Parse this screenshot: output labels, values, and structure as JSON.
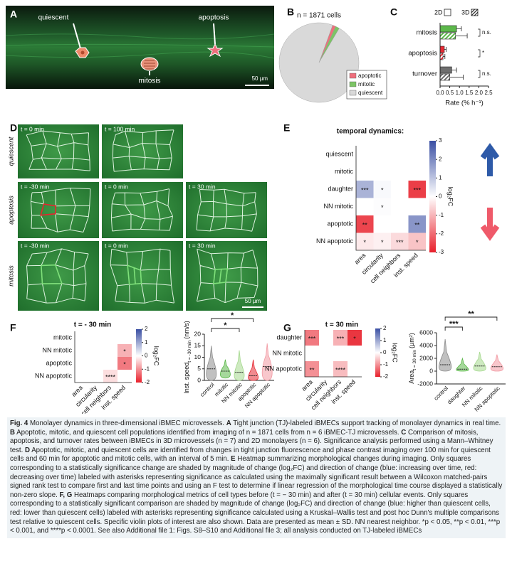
{
  "panel_labels": [
    "A",
    "B",
    "C",
    "D",
    "E",
    "F",
    "G"
  ],
  "image_a": {
    "labels": [
      "quiescent",
      "apoptosis",
      "mitosis"
    ],
    "scale_bar": "50 µm"
  },
  "image_d": {
    "rows": [
      {
        "label": "quiescent",
        "times": [
          "t = 0 min",
          "t = 100 min"
        ]
      },
      {
        "label": "apoptosis",
        "times": [
          "t = -30 min",
          "t = 0 min",
          "t = 30 min"
        ]
      },
      {
        "label": "mitosis",
        "times": [
          "t = -30 min",
          "t = 0 min",
          "t = 30 min"
        ]
      }
    ],
    "scale_bar": "50 µm"
  },
  "chart_data": [
    {
      "type": "pie",
      "title": "n = 1871 cells",
      "series": [
        {
          "name": "apoptotic",
          "color": "#ee6f7c",
          "value": 1.3
        },
        {
          "name": "mitotic",
          "color": "#7cc465",
          "value": 1.6
        },
        {
          "name": "quiescent",
          "color": "#d9d9d9",
          "value": 97.1
        }
      ]
    },
    {
      "type": "bar",
      "orientation": "horizontal",
      "categories": [
        "mitosis",
        "apoptosis",
        "turnover"
      ],
      "category_colors": [
        "#5cb84a",
        "#e62a33",
        "#6e6e6e"
      ],
      "series": [
        {
          "name": "2D",
          "hatch": false,
          "values": [
            0.85,
            0.22,
            0.6
          ],
          "errors": [
            0.25,
            0.1,
            0.25
          ]
        },
        {
          "name": "3D",
          "hatch": true,
          "values": [
            0.8,
            0.15,
            0.5
          ],
          "errors": [
            0.6,
            0.1,
            0.7
          ]
        }
      ],
      "significance": [
        "n.s.",
        "*",
        "n.s."
      ],
      "xlabel": "Rate (% h⁻¹)",
      "xlim": [
        0,
        2.5
      ],
      "xticks": [
        {
          "value": 0,
          "label": "0.0"
        },
        0.5,
        {
          "value": 1,
          "label": "1.0"
        },
        1.5,
        {
          "value": 2,
          "label": "2.0"
        },
        2.5
      ]
    },
    {
      "type": "heatmap",
      "title": "temporal dynamics:",
      "rows": [
        "quiescent",
        "mitotic",
        "daughter",
        "NN mitotic",
        "apoptotic",
        "NN apoptotic"
      ],
      "columns": [
        "area",
        "circularity",
        "cell neighbors",
        "inst. speed"
      ],
      "values": [
        [
          null,
          null,
          null,
          null
        ],
        [
          null,
          null,
          null,
          null
        ],
        [
          1.3,
          0.1,
          null,
          -2.6
        ],
        [
          null,
          0.05,
          null,
          null
        ],
        [
          -2.5,
          null,
          null,
          1.8
        ],
        [
          -0.3,
          -0.2,
          -0.5,
          -0.8
        ]
      ],
      "annotations": [
        [
          null,
          null,
          null,
          null
        ],
        [
          null,
          null,
          null,
          null
        ],
        [
          "***",
          "*",
          null,
          "***"
        ],
        [
          null,
          "*",
          null,
          null
        ],
        [
          "**",
          null,
          null,
          "**"
        ],
        [
          "*",
          "*",
          "***",
          "*"
        ]
      ],
      "clim": [
        -3,
        3
      ],
      "cticks": [
        3,
        2,
        1,
        0,
        -1,
        -2,
        -3
      ],
      "clabel": "log₂FC"
    },
    {
      "type": "heatmap",
      "title": "t = - 30 min",
      "rows": [
        "mitotic",
        "NN mitotic",
        "apoptotic",
        "NN apoptotic"
      ],
      "columns": [
        "area",
        "circularity",
        "cell neighbors",
        "inst. speed"
      ],
      "values": [
        [
          null,
          null,
          null,
          null
        ],
        [
          null,
          null,
          null,
          -0.7
        ],
        [
          null,
          null,
          null,
          -1.2
        ],
        [
          null,
          null,
          -0.3,
          null
        ]
      ],
      "annotations": [
        [
          null,
          null,
          null,
          null
        ],
        [
          null,
          null,
          null,
          "*"
        ],
        [
          null,
          null,
          null,
          "*"
        ],
        [
          null,
          null,
          "****",
          null
        ]
      ],
      "clim": [
        -2,
        2
      ],
      "cticks": [
        2,
        1,
        0,
        -1,
        -2
      ],
      "clabel": "log₂FC"
    },
    {
      "type": "violin",
      "categories": [
        "control",
        "mitotic",
        "NN mitotic",
        "apoptotic",
        "NN apoptotic"
      ],
      "colors": [
        "#8c8c8c",
        "#5cb84a",
        "#a6d98f",
        "#e62a33",
        "#f29aa3"
      ],
      "mins": [
        0,
        1,
        0,
        0,
        0
      ],
      "medians": [
        5,
        4,
        3.5,
        2,
        6
      ],
      "maxs": [
        15,
        9,
        13,
        9,
        16
      ],
      "ylabel": "Inst. speed",
      "ylabel_sub": "t = -30 min",
      "ylabel_unit": "(nm/s)",
      "ylim": [
        0,
        20
      ],
      "yticks": [
        0,
        5,
        10,
        15,
        20
      ],
      "brackets": [
        {
          "pair": [
            "control",
            "NN mitotic"
          ],
          "label": "*"
        },
        {
          "pair": [
            "control",
            "apoptotic"
          ],
          "label": "*"
        }
      ]
    },
    {
      "type": "heatmap",
      "title": "t = 30 min",
      "rows": [
        "daughter",
        "NN mitotic",
        "NN apoptotic"
      ],
      "columns": [
        "area",
        "circularity",
        "cell neighbors",
        "inst. speed"
      ],
      "values": [
        [
          -1.2,
          null,
          -0.7,
          -1.8
        ],
        [
          null,
          null,
          null,
          null
        ],
        [
          -1.0,
          null,
          -0.6,
          null
        ]
      ],
      "annotations": [
        [
          "***",
          null,
          "***",
          "*"
        ],
        [
          null,
          null,
          null,
          null
        ],
        [
          "**",
          null,
          "****",
          null
        ]
      ],
      "clim": [
        -2,
        2
      ],
      "cticks": [
        2,
        1,
        0,
        -1,
        -2
      ],
      "clabel": "log₂FC"
    },
    {
      "type": "violin",
      "categories": [
        "control",
        "daughter",
        "NN mitotic",
        "NN apoptotic"
      ],
      "colors": [
        "#8c8c8c",
        "#5cb84a",
        "#a6d98f",
        "#f29aa3"
      ],
      "mins": [
        0,
        0,
        0,
        0
      ],
      "medians": [
        1000,
        300,
        800,
        700
      ],
      "maxs": [
        5000,
        2000,
        3000,
        2600
      ],
      "ylabel": "Area",
      "ylabel_sub": "t = 30 min",
      "ylabel_unit": "(µm²)",
      "ylim": [
        -2000,
        6000
      ],
      "yticks": [
        -2000,
        0,
        2000,
        4000,
        6000
      ],
      "brackets": [
        {
          "pair": [
            "control",
            "daughter"
          ],
          "label": "***"
        },
        {
          "pair": [
            "control",
            "NN apoptotic"
          ],
          "label": "**"
        }
      ]
    }
  ],
  "caption": {
    "fig": "Fig. 4",
    "title": "Monolayer dynamics in three-dimensional iBMEC microvessels.",
    "parts": [
      {
        "label": "A",
        "text": "Tight junction (TJ)-labeled iBMECs support tracking of monolayer dynamics in real time."
      },
      {
        "label": "B",
        "text": "Apoptotic, mitotic, and quiescent cell populations identified from imaging of n = 1871 cells from n = 6 iBMEC-TJ microvessels."
      },
      {
        "label": "C",
        "text": "Comparison of mitosis, apoptosis, and turnover rates between iBMECs in 3D microvessels (n = 7) and 2D monolayers (n = 6). Significance analysis performed using a Mann–Whitney test."
      },
      {
        "label": "D",
        "text": "Apoptotic, mitotic, and quiescent cells are identified from changes in tight junction fluorescence and phase contrast imaging over 100 min for quiescent cells and 60 min for apoptotic and mitotic cells, with an interval of 5 min."
      },
      {
        "label": "E",
        "text": "Heatmap summarizing morphological changes during imaging. Only squares corresponding to a statistically significance change are shaded by magnitude of change (log₂FC) and direction of change (blue: increasing over time, red: decreasing over time) labeled with asterisks representing significance as calculated using the maximally significant result between a Wilcoxon matched-pairs signed rank test to compare first and last time points and using an F test to determine if linear regression of the morphological time course displayed a statistically non-zero slope."
      },
      {
        "label": "F, G",
        "text": "Heatmaps comparing morphological metrics of cell types before (t = − 30 min) and after (t = 30 min) cellular events. Only squares corresponding to a statistically significant comparison are shaded by magnitude of change (log₂FC) and direction of change (blue: higher than quiescent cells, red: lower than quiescent cells) labeled with asterisks representing significance calculated using a Kruskal–Wallis test and post hoc Dunn's multiple comparisons test relative to quiescent cells. Specific violin plots of interest are also shown. Data are presented as mean ± SD. NN nearest neighbor. *p < 0.05, **p < 0.01, ***p < 0.001, and ****p < 0.0001. See also Additional file 1: Figs. S8–S10 and Additional file 3; all analysis conducted on TJ-labeled iBMECs"
      }
    ]
  }
}
